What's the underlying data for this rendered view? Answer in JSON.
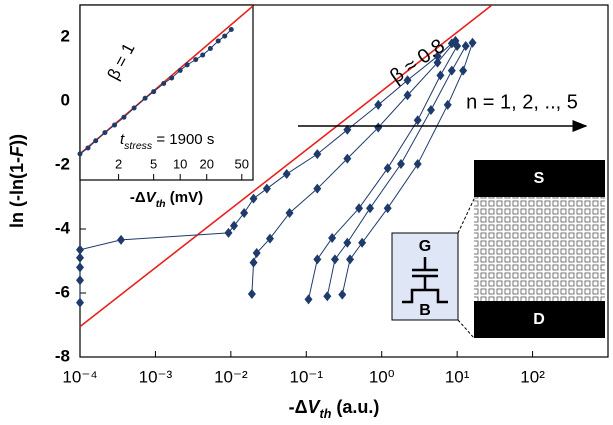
{
  "chart_data": [
    {
      "type": "line",
      "xlabel": {
        "pre": "-Δ",
        "var": "V",
        "sub": "th",
        "post": " (a.u.)"
      },
      "ylabel": {
        "pre": "ln (-ln(1-",
        "var": "F",
        "post": "))"
      },
      "xlog": true,
      "xlim": [
        0.0001,
        1000
      ],
      "ylim": [
        -8,
        3
      ],
      "xticks": [
        {
          "value": 0.0001,
          "label": "10⁻⁴"
        },
        {
          "value": 0.001,
          "label": "10⁻³"
        },
        {
          "value": 0.01,
          "label": "10⁻²"
        },
        {
          "value": 0.1,
          "label": "10⁻¹"
        },
        {
          "value": 1,
          "label": "10⁰"
        },
        {
          "value": 10,
          "label": "10¹"
        },
        {
          "value": 100,
          "label": "10²"
        }
      ],
      "yticks": [
        2,
        0,
        -2,
        -4,
        -6,
        -8
      ],
      "annotations": {
        "beta": "β ≈ 0.8",
        "n": "n = 1, 2, .., 5"
      },
      "series": [
        {
          "color": "#e8211d",
          "marker": "none",
          "x": [
            0.0001,
            29
          ],
          "values": [
            -7.05,
            3
          ]
        },
        {
          "color": "#1f3b6b",
          "marker": "diamond",
          "x": [
            0.0001,
            0.0001,
            0.0001,
            0.0001,
            0.0001,
            0.00035,
            0.0093,
            0.011,
            0.015,
            0.02,
            0.03,
            0.055,
            0.14,
            0.35,
            0.9,
            2.2,
            5.5,
            8.5
          ],
          "values": [
            -6.3,
            -5.6,
            -5.2,
            -4.9,
            -4.65,
            -4.34,
            -4.12,
            -3.9,
            -3.5,
            -3.05,
            -2.74,
            -2.28,
            -1.66,
            -0.9,
            -0.12,
            0.65,
            1.4,
            1.8
          ]
        },
        {
          "color": "#1f3b6b",
          "marker": "diamond",
          "x": [
            0.019,
            0.02,
            0.022,
            0.033,
            0.06,
            0.14,
            0.35,
            0.9,
            2.2,
            5.5,
            9.5
          ],
          "values": [
            -6.03,
            -5.05,
            -4.75,
            -4.3,
            -3.5,
            -2.74,
            -1.8,
            -0.83,
            0.18,
            1.2,
            1.88
          ]
        },
        {
          "color": "#1f3b6b",
          "marker": "diamond",
          "x": [
            0.107,
            0.14,
            0.22,
            0.5,
            1.2,
            3,
            6,
            10
          ],
          "values": [
            -6.2,
            -4.95,
            -4.28,
            -3.35,
            -2.1,
            -0.6,
            0.8,
            1.72
          ]
        },
        {
          "color": "#1f3b6b",
          "marker": "diamond",
          "x": [
            0.19,
            0.24,
            0.35,
            0.7,
            1.8,
            4.5,
            8.5,
            13
          ],
          "values": [
            -6.1,
            -4.95,
            -4.43,
            -3.35,
            -1.97,
            -0.28,
            0.95,
            1.72
          ]
        },
        {
          "color": "#1f3b6b",
          "marker": "diamond",
          "x": [
            0.3,
            0.38,
            0.55,
            1.2,
            3,
            7.5,
            12,
            16
          ],
          "values": [
            -6.05,
            -4.95,
            -4.43,
            -3.35,
            -1.97,
            -0.12,
            0.95,
            1.82
          ]
        }
      ]
    },
    {
      "type": "line",
      "xlabel": {
        "pre": "-Δ",
        "var": "V",
        "sub": "th",
        "post": " (mV)"
      },
      "xlog": true,
      "xlim": [
        0.73,
        67
      ],
      "ylim": [
        -2.4,
        2.95
      ],
      "xticks": [
        2,
        5,
        10,
        20,
        50
      ],
      "annotations": {
        "beta": "β = 1",
        "t": {
          "var": "t",
          "sub": "stress",
          "post": " = 1900 s"
        }
      },
      "series": [
        {
          "color": "#e8211d",
          "marker": "none",
          "x": [
            0.73,
            67
          ],
          "values": [
            -1.6,
            2.92
          ]
        },
        {
          "color": "#1f3b6b",
          "marker": "circle",
          "x": [
            0.73,
            0.9,
            1.1,
            1.4,
            1.8,
            2.3,
            3,
            4,
            5,
            6.5,
            8,
            10,
            12,
            15,
            18,
            22,
            27,
            32,
            38
          ],
          "values": [
            -1.6,
            -1.42,
            -1.2,
            -0.95,
            -0.72,
            -0.48,
            -0.2,
            0.1,
            0.3,
            0.55,
            0.72,
            0.95,
            1.12,
            1.28,
            1.42,
            1.62,
            1.85,
            2.0,
            2.2
          ]
        }
      ]
    }
  ],
  "diagram": {
    "source": "S",
    "drain": "D",
    "gate": "G",
    "bulk": "B"
  }
}
